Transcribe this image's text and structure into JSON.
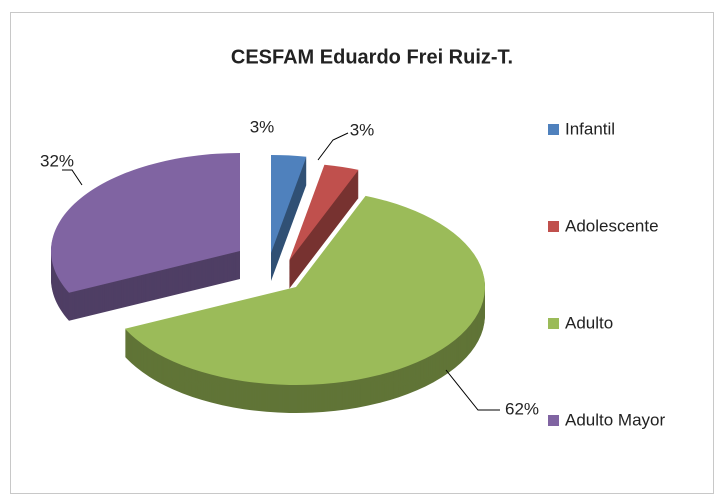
{
  "chart_data": {
    "type": "pie",
    "title": "CESFAM Eduardo Frei Ruiz-T.",
    "categories": [
      "Infantil",
      "Adolescente",
      "Adulto",
      "Adulto Mayor"
    ],
    "values": [
      3,
      3,
      62,
      32
    ],
    "value_labels": [
      "3%",
      "3%",
      "62%",
      "32%"
    ],
    "colors": [
      "#4f81bd",
      "#c0504d",
      "#9bbb59",
      "#8064a2"
    ],
    "legend": "right"
  }
}
